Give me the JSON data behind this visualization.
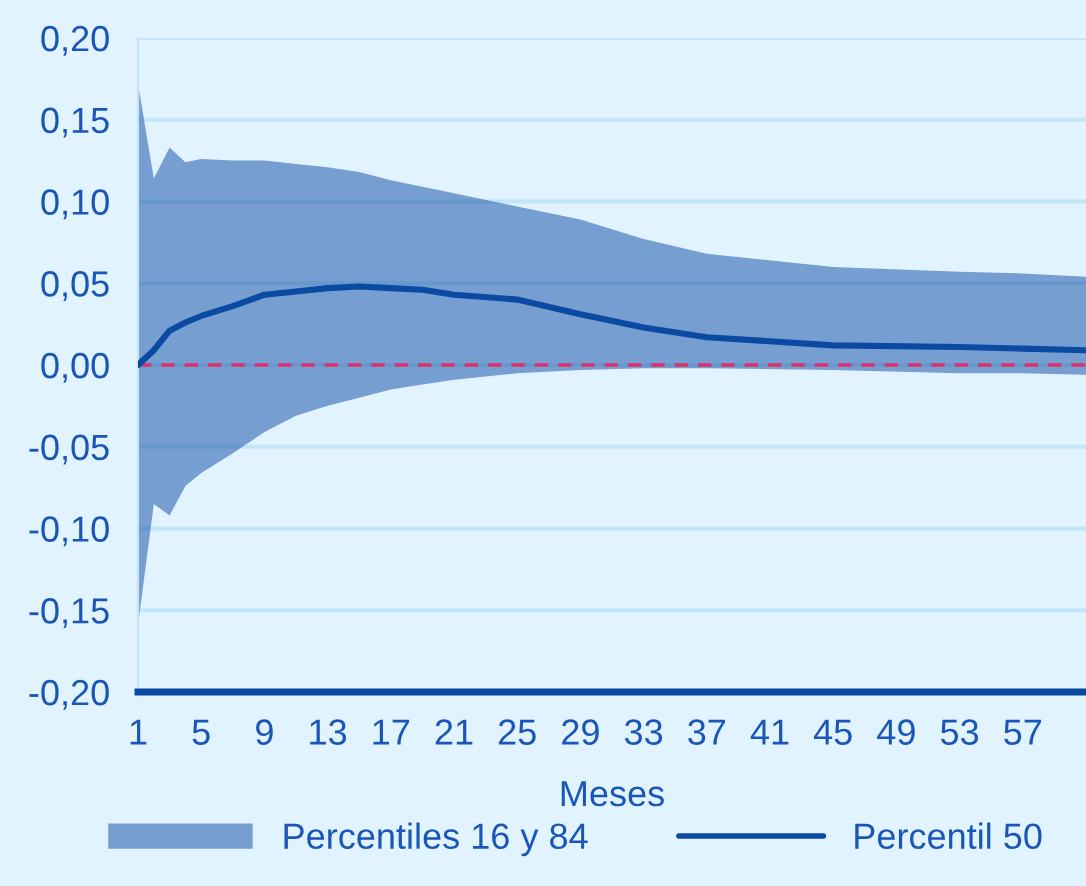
{
  "chart_data": {
    "type": "line",
    "xlabel": "Meses",
    "series": [
      {
        "name": "Percentil 50",
        "color": "#0b4aa2",
        "x": [
          1,
          2,
          3,
          4,
          5,
          7,
          9,
          11,
          13,
          15,
          17,
          19,
          21,
          25,
          29,
          33,
          37,
          45,
          53,
          57,
          61
        ],
        "values": [
          0,
          0.009,
          0.021,
          0.026,
          0.03,
          0.036,
          0.043,
          0.045,
          0.047,
          0.048,
          0.047,
          0.046,
          0.043,
          0.04,
          0.031,
          0.023,
          0.017,
          0.012,
          0.011,
          0.01,
          0.009
        ],
        "lower": [
          -0.159,
          -0.085,
          -0.092,
          -0.074,
          -0.066,
          -0.054,
          -0.041,
          -0.031,
          -0.025,
          -0.02,
          -0.015,
          -0.012,
          -0.009,
          -0.005,
          -0.003,
          -0.002,
          -0.002,
          -0.003,
          -0.005,
          -0.005,
          -0.006
        ],
        "upper": [
          0.172,
          0.114,
          0.133,
          0.124,
          0.126,
          0.125,
          0.125,
          0.123,
          0.121,
          0.118,
          0.113,
          0.109,
          0.105,
          0.097,
          0.089,
          0.077,
          0.068,
          0.06,
          0.057,
          0.056,
          0.054
        ]
      }
    ],
    "annotations": [
      "Percentiles 16 y 84"
    ],
    "xlim": [
      1,
      61
    ],
    "xticks": [
      1,
      5,
      9,
      13,
      17,
      21,
      25,
      29,
      33,
      37,
      41,
      45,
      49,
      53,
      57
    ],
    "ylim": [
      -0.2,
      0.2
    ],
    "yticks": [
      {
        "value": -0.2,
        "label": "-0,20"
      },
      {
        "value": -0.15,
        "label": "-0,15"
      },
      {
        "value": -0.1,
        "label": "-0,10"
      },
      {
        "value": -0.05,
        "label": "-0,05"
      },
      {
        "value": 0,
        "label": "0,00"
      },
      {
        "value": 0.05,
        "label": "0,05"
      },
      {
        "value": 0.1,
        "label": "0,10"
      },
      {
        "value": 0.15,
        "label": "0,15"
      },
      {
        "value": 0.2,
        "label": "0,20"
      }
    ],
    "ref_lines": [
      {
        "axis": "y",
        "value": 0,
        "color": "#e0306a",
        "line_style": "dashed"
      }
    ],
    "grid": "y",
    "legend": "bottom"
  }
}
